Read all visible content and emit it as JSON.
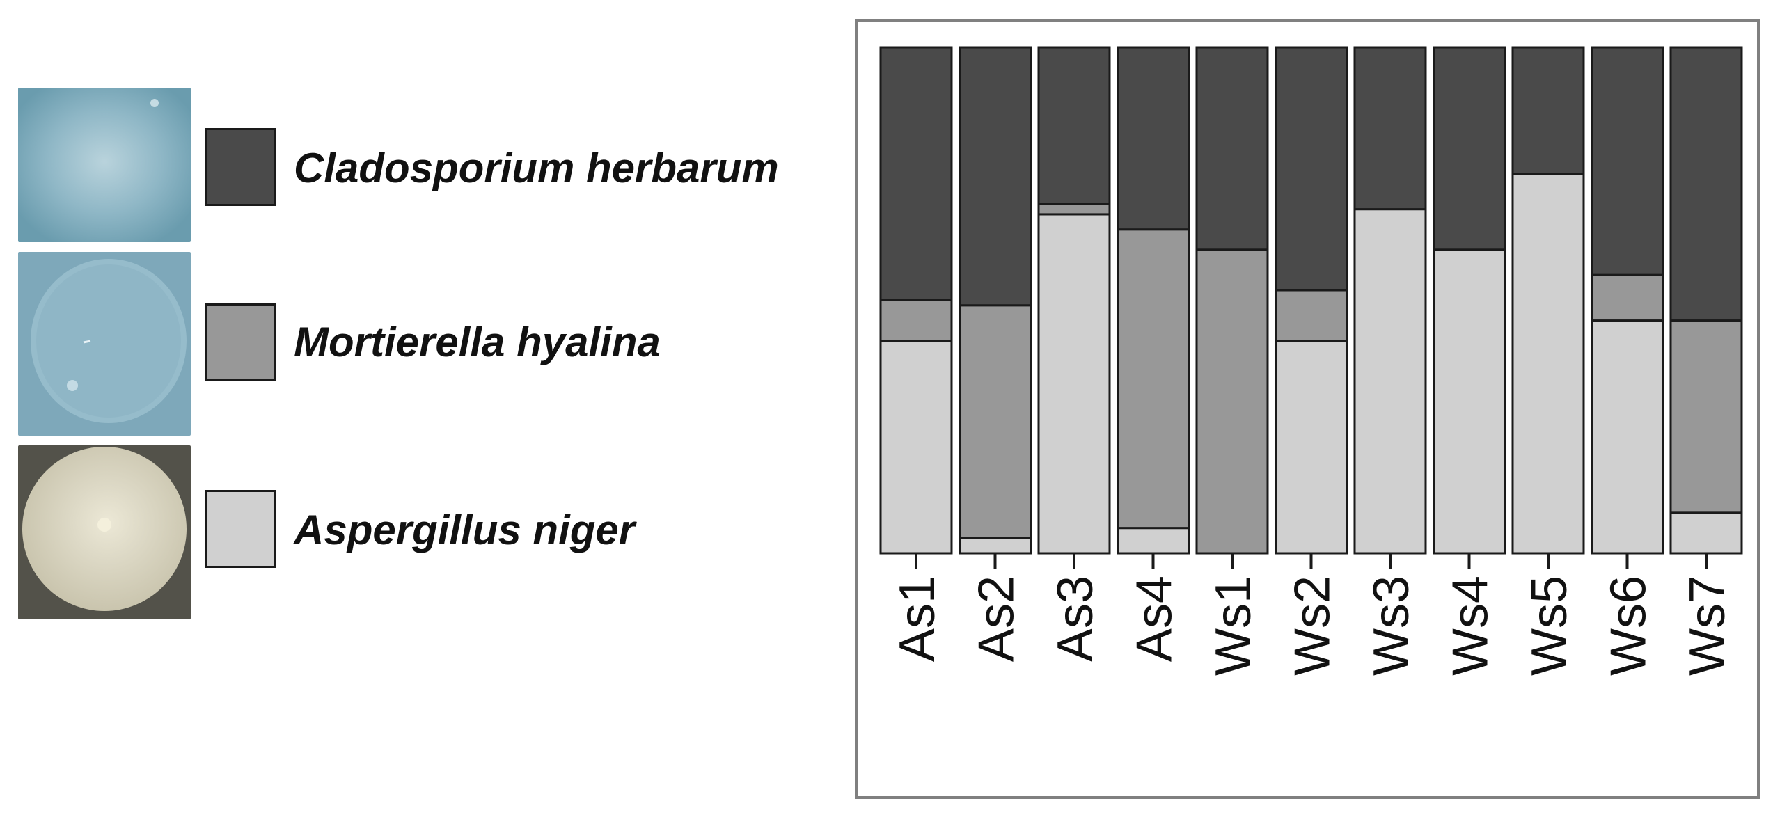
{
  "legend": {
    "items": [
      {
        "label": "Cladosporium herbarum",
        "color": "#4a4a4a",
        "photo": "blue-gray-fungal-colony-photo"
      },
      {
        "label": "Mortierella hyalina",
        "color": "#989898",
        "photo": "pale-blue-fungal-colony-photo"
      },
      {
        "label": "Aspergillus niger",
        "color": "#d0d0d0",
        "photo": "cream-fungal-colony-photo"
      }
    ]
  },
  "chart_data": {
    "type": "bar",
    "stacked": true,
    "normalized": true,
    "title": "",
    "xlabel": "",
    "ylabel": "",
    "ylim": [
      0,
      1
    ],
    "grid": false,
    "legend_position": "left",
    "categories": [
      "As1",
      "As2",
      "As3",
      "As4",
      "Ws1",
      "Ws2",
      "Ws3",
      "Ws4",
      "Ws5",
      "Ws6",
      "Ws7"
    ],
    "series": [
      {
        "name": "Aspergillus niger",
        "color": "#d0d0d0",
        "values": [
          0.42,
          0.03,
          0.67,
          0.05,
          0.0,
          0.42,
          0.68,
          0.6,
          0.75,
          0.46,
          0.08
        ]
      },
      {
        "name": "Mortierella hyalina",
        "color": "#989898",
        "values": [
          0.08,
          0.46,
          0.02,
          0.59,
          0.6,
          0.1,
          0.0,
          0.0,
          0.0,
          0.09,
          0.38
        ]
      },
      {
        "name": "Cladosporium herbarum",
        "color": "#4a4a4a",
        "values": [
          0.5,
          0.51,
          0.31,
          0.36,
          0.4,
          0.48,
          0.32,
          0.4,
          0.25,
          0.45,
          0.54
        ]
      }
    ]
  }
}
